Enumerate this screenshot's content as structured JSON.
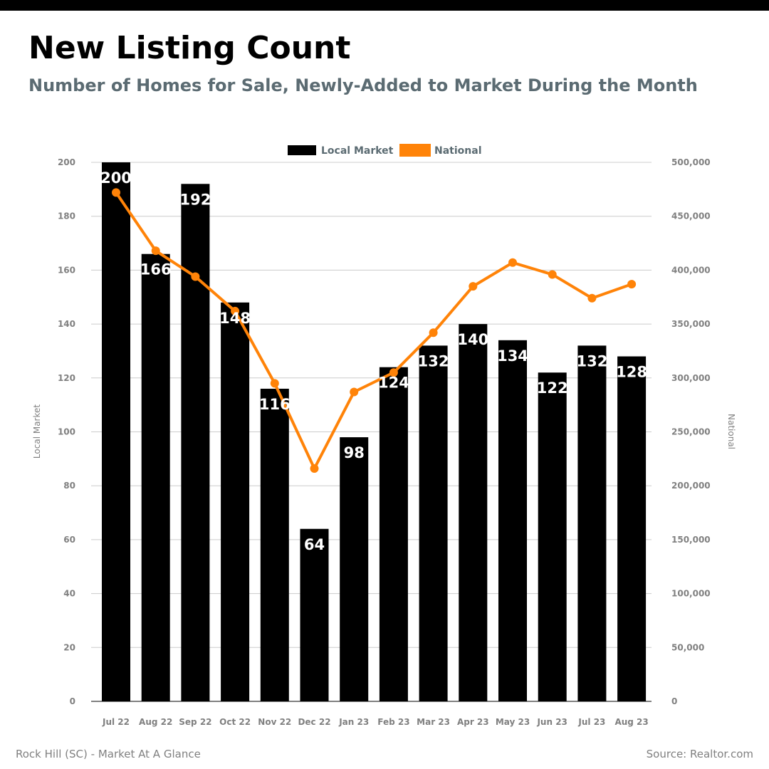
{
  "header": {
    "title": "New Listing Count",
    "subtitle": "Number of Homes for Sale, Newly-Added to Market During the Month"
  },
  "footer": {
    "left": "Rock Hill (SC) - Market At A Glance",
    "right": "Source: Realtor.com"
  },
  "colors": {
    "bar": "#000000",
    "line": "#ff8308",
    "subtitle": "#5b6b72",
    "axis_text": "#808080",
    "grid": "#cccccc"
  },
  "chart_data": {
    "type": "bar",
    "categories": [
      "Jul 22",
      "Aug 22",
      "Sep 22",
      "Oct 22",
      "Nov 22",
      "Dec 22",
      "Jan 23",
      "Feb 23",
      "Mar 23",
      "Apr 23",
      "May 23",
      "Jun 23",
      "Jul 23",
      "Aug 23"
    ],
    "series": [
      {
        "name": "Local Market",
        "type": "bar",
        "axis": "left",
        "values": [
          200,
          166,
          192,
          148,
          116,
          64,
          98,
          124,
          132,
          140,
          134,
          122,
          132,
          128
        ],
        "data_labels": [
          "200",
          "166",
          "192",
          "148",
          "116",
          "64",
          "98",
          "124",
          "132",
          "140",
          "134",
          "122",
          "132",
          "128"
        ]
      },
      {
        "name": "National",
        "type": "line",
        "axis": "right",
        "values": [
          472000,
          418000,
          394000,
          362000,
          295000,
          216000,
          287000,
          305000,
          342000,
          385000,
          407000,
          396000,
          374000,
          387000
        ]
      }
    ],
    "ylabel_left": "Local Market",
    "ylabel_right": "National",
    "ylim_left": [
      0,
      200
    ],
    "ylim_right": [
      0,
      500000
    ],
    "yticks_left": [
      "0",
      "20",
      "40",
      "60",
      "80",
      "100",
      "120",
      "140",
      "160",
      "180",
      "200"
    ],
    "yticks_right": [
      "0",
      "50,000",
      "100,000",
      "150,000",
      "200,000",
      "250,000",
      "300,000",
      "350,000",
      "400,000",
      "450,000",
      "500,000"
    ],
    "grid": true,
    "legend": "top-center"
  }
}
